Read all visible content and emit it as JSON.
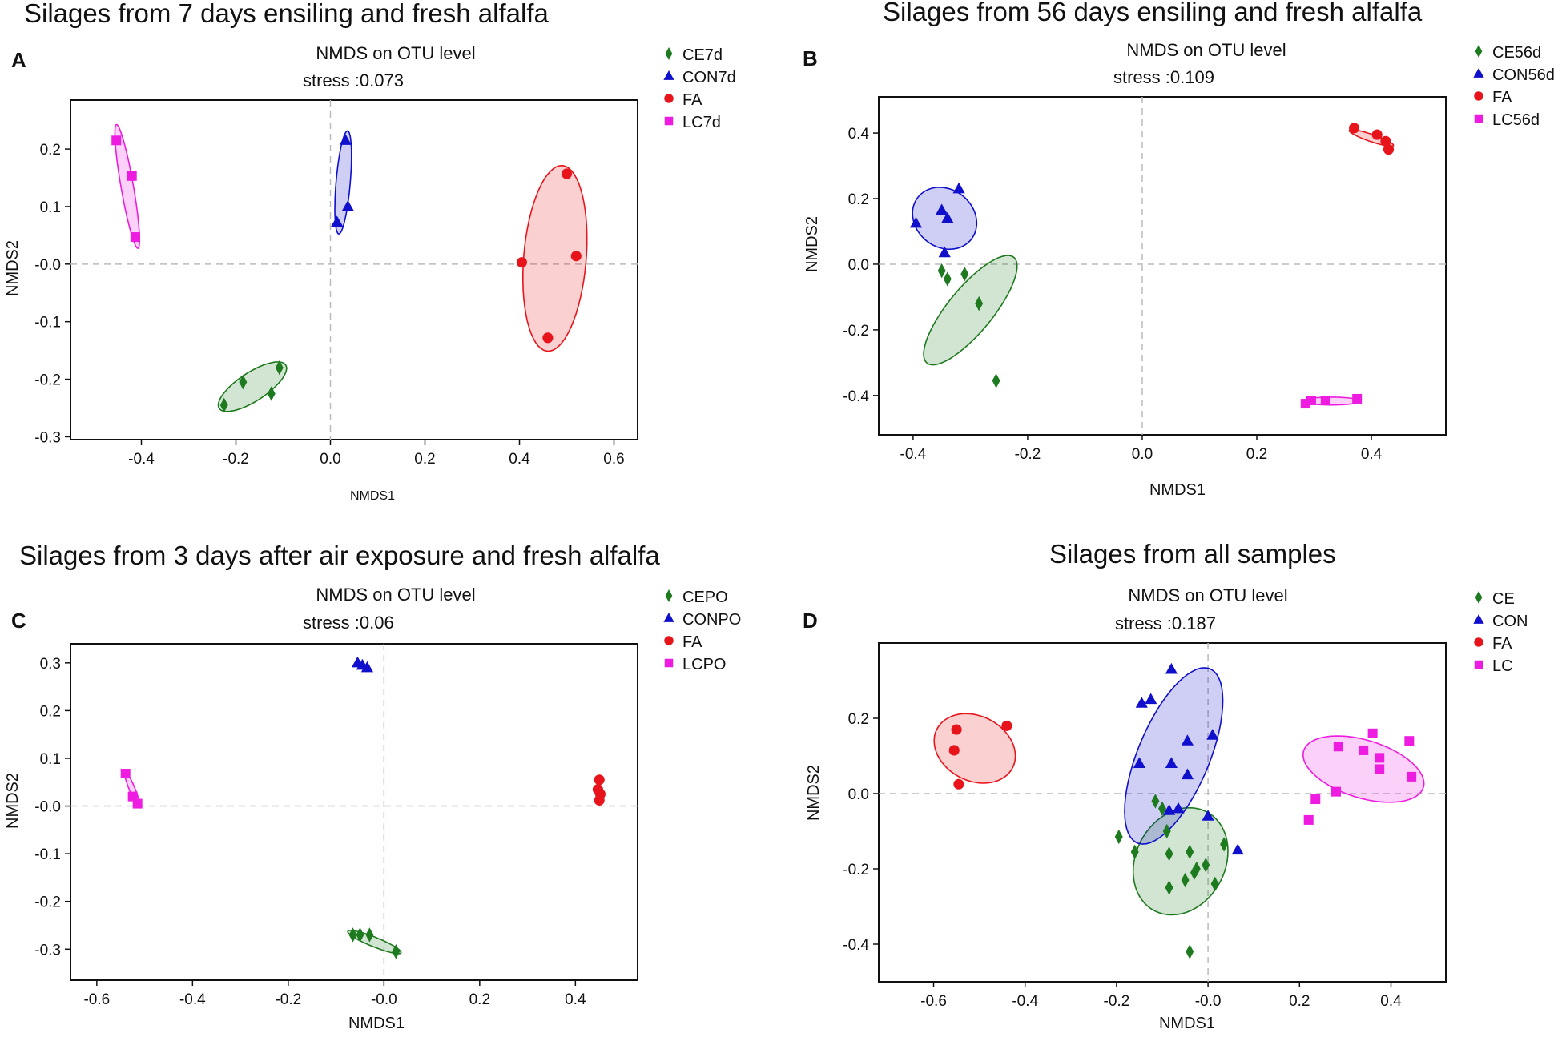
{
  "figure": {
    "panels": [
      {
        "letter": "A",
        "heading": "Silages from 7 days ensiling and fresh alfalfa",
        "title": "NMDS on OTU level",
        "stress": "stress :0.073"
      },
      {
        "letter": "B",
        "heading": "Silages from 56 days ensiling and fresh alfalfa",
        "title": "NMDS on OTU level",
        "stress": "stress :0.109"
      },
      {
        "letter": "C",
        "heading": "Silages from 3 days after air exposure and fresh alfalfa",
        "title": "NMDS on OTU level",
        "stress": "stress :0.06"
      },
      {
        "letter": "D",
        "heading": "Silages from all samples",
        "title": "NMDS on OTU level",
        "stress": "stress :0.187"
      }
    ]
  },
  "colors": {
    "CE": "#1e7a1e",
    "CON": "#1010cc",
    "FA": "#e8141b",
    "LC": "#ee1be0",
    "grid": "#bbbbbb",
    "axis": "#111111"
  },
  "chart_data": [
    {
      "type": "scatter",
      "title": "NMDS on OTU level",
      "xlabel": "NMDS1",
      "ylabel": "NMDS2",
      "xlim": [
        -0.55,
        0.65
      ],
      "ylim": [
        -0.305,
        0.285
      ],
      "xticks": [
        -0.4,
        -0.2,
        0.0,
        0.2,
        0.4,
        0.6
      ],
      "xtick_labels": [
        "-0.4",
        "-0.2",
        "0.0",
        "0.2",
        "0.4",
        "0.6"
      ],
      "yticks": [
        -0.3,
        -0.2,
        -0.1,
        0.0,
        0.1,
        0.2
      ],
      "ytick_labels": [
        "-0.3",
        "-0.2",
        "-0.1",
        "-0.0",
        "0.1",
        "0.2"
      ],
      "legend_position": "right",
      "series": [
        {
          "name": "CE7d",
          "group": "CE",
          "marker": "diamond",
          "points": [
            [
              -0.225,
              -0.245
            ],
            [
              -0.185,
              -0.205
            ],
            [
              -0.125,
              -0.225
            ],
            [
              -0.108,
              -0.18
            ]
          ],
          "ellipse": {
            "cx": -0.165,
            "cy": -0.213,
            "rx": 0.08,
            "ry": 0.026,
            "angle": 27
          }
        },
        {
          "name": "CON7d",
          "group": "CON",
          "marker": "triangle",
          "points": [
            [
              0.032,
              0.215
            ],
            [
              0.037,
              0.1
            ],
            [
              0.014,
              0.073
            ]
          ],
          "ellipse": {
            "cx": 0.027,
            "cy": 0.142,
            "rx": 0.09,
            "ry": 0.015,
            "angle": 84
          }
        },
        {
          "name": "FA",
          "group": "FA",
          "marker": "circle",
          "points": [
            [
              0.5,
              0.157
            ],
            [
              0.405,
              0.003
            ],
            [
              0.52,
              0.014
            ],
            [
              0.46,
              -0.128
            ]
          ],
          "ellipse": {
            "cx": 0.475,
            "cy": 0.01,
            "rx": 0.162,
            "ry": 0.066,
            "angle": 84
          }
        },
        {
          "name": "LC7d",
          "group": "LC",
          "marker": "square",
          "points": [
            [
              -0.453,
              0.215
            ],
            [
              -0.42,
              0.153
            ],
            [
              -0.413,
              0.047
            ]
          ],
          "ellipse": {
            "cx": -0.43,
            "cy": 0.135,
            "rx": 0.11,
            "ry": 0.013,
            "angle": -78
          }
        }
      ]
    },
    {
      "type": "scatter",
      "title": "NMDS on OTU level",
      "xlabel": "NMDS1",
      "ylabel": "NMDS2",
      "xlim": [
        -0.46,
        0.53
      ],
      "ylim": [
        -0.52,
        0.51
      ],
      "xticks": [
        -0.4,
        -0.2,
        0.0,
        0.2,
        0.4
      ],
      "xtick_labels": [
        "-0.4",
        "-0.2",
        "0.0",
        "0.2",
        "0.4"
      ],
      "yticks": [
        -0.4,
        -0.2,
        0.0,
        0.2,
        0.4
      ],
      "ytick_labels": [
        "-0.4",
        "-0.2",
        "0.0",
        "0.2",
        "0.4"
      ],
      "legend_position": "right",
      "series": [
        {
          "name": "CE56d",
          "group": "CE",
          "marker": "diamond",
          "points": [
            [
              -0.34,
              -0.045
            ],
            [
              -0.31,
              -0.03
            ],
            [
              -0.285,
              -0.12
            ],
            [
              -0.255,
              -0.355
            ],
            [
              -0.35,
              -0.02
            ]
          ],
          "ellipse": {
            "cx": -0.3,
            "cy": -0.14,
            "rx": 0.18,
            "ry": 0.045,
            "angle": 67
          }
        },
        {
          "name": "CON56d",
          "group": "CON",
          "marker": "triangle",
          "points": [
            [
              -0.395,
              0.125
            ],
            [
              -0.35,
              0.165
            ],
            [
              -0.32,
              0.23
            ],
            [
              -0.34,
              0.14
            ],
            [
              -0.345,
              0.035
            ]
          ],
          "ellipse": {
            "cx": -0.345,
            "cy": 0.14,
            "rx": 0.055,
            "ry": 0.095,
            "angle": 8
          }
        },
        {
          "name": "FA",
          "group": "FA",
          "marker": "circle",
          "points": [
            [
              0.37,
              0.415
            ],
            [
              0.41,
              0.395
            ],
            [
              0.425,
              0.375
            ],
            [
              0.43,
              0.35
            ]
          ],
          "ellipse": {
            "cx": 0.4,
            "cy": 0.385,
            "rx": 0.045,
            "ry": 0.01,
            "angle": -32
          }
        },
        {
          "name": "LC56d",
          "group": "LC",
          "marker": "square",
          "points": [
            [
              0.285,
              -0.425
            ],
            [
              0.295,
              -0.415
            ],
            [
              0.32,
              -0.415
            ],
            [
              0.375,
              -0.41
            ]
          ],
          "ellipse": {
            "cx": 0.33,
            "cy": -0.417,
            "rx": 0.05,
            "ry": 0.012,
            "angle": 0
          }
        }
      ]
    },
    {
      "type": "scatter",
      "title": "NMDS on OTU level",
      "xlabel": "NMDS1",
      "ylabel": "NMDS2",
      "xlim": [
        -0.655,
        0.53
      ],
      "ylim": [
        -0.365,
        0.34
      ],
      "xticks": [
        -0.6,
        -0.4,
        -0.2,
        0.0,
        0.2,
        0.4
      ],
      "xtick_labels": [
        "-0.6",
        "-0.4",
        "-0.2",
        "-0.0",
        "0.2",
        "0.4"
      ],
      "yticks": [
        -0.3,
        -0.2,
        -0.1,
        0.0,
        0.1,
        0.2,
        0.3
      ],
      "ytick_labels": [
        "-0.3",
        "-0.2",
        "-0.1",
        "-0.0",
        "0.1",
        "0.2",
        "0.3"
      ],
      "legend_position": "right",
      "series": [
        {
          "name": "CEPO",
          "group": "CE",
          "marker": "diamond",
          "points": [
            [
              -0.065,
              -0.27
            ],
            [
              -0.05,
              -0.27
            ],
            [
              -0.03,
              -0.27
            ],
            [
              0.025,
              -0.305
            ]
          ],
          "ellipse": {
            "cx": -0.02,
            "cy": -0.285,
            "rx": 0.06,
            "ry": 0.01,
            "angle": -22
          }
        },
        {
          "name": "CONPO",
          "group": "CON",
          "marker": "triangle",
          "points": [
            [
              -0.055,
              0.3
            ],
            [
              -0.045,
              0.295
            ],
            [
              -0.035,
              0.29
            ]
          ],
          "ellipse": null
        },
        {
          "name": "FA",
          "group": "FA",
          "marker": "circle",
          "points": [
            [
              0.45,
              0.055
            ],
            [
              0.447,
              0.035
            ],
            [
              0.452,
              0.025
            ],
            [
              0.45,
              0.012
            ]
          ],
          "ellipse": null
        },
        {
          "name": "LCPO",
          "group": "LC",
          "marker": "square",
          "points": [
            [
              -0.54,
              0.068
            ],
            [
              -0.525,
              0.02
            ],
            [
              -0.515,
              0.005
            ]
          ],
          "ellipse": {
            "cx": -0.526,
            "cy": 0.035,
            "rx": 0.04,
            "ry": 0.006,
            "angle": -68
          }
        }
      ]
    },
    {
      "type": "scatter",
      "title": "NMDS on OTU level",
      "xlabel": "NMDS1",
      "ylabel": "NMDS2",
      "xlim": [
        -0.72,
        0.52
      ],
      "ylim": [
        -0.5,
        0.4
      ],
      "xticks": [
        -0.6,
        -0.4,
        -0.2,
        0.0,
        0.2,
        0.4
      ],
      "xtick_labels": [
        "-0.6",
        "-0.4",
        "-0.2",
        "-0.0",
        "0.2",
        "0.4"
      ],
      "yticks": [
        -0.4,
        -0.2,
        0.0,
        0.2
      ],
      "ytick_labels": [
        "-0.4",
        "-0.2",
        "0.0",
        "0.2"
      ],
      "legend_position": "right",
      "series": [
        {
          "name": "CE",
          "group": "CE",
          "marker": "diamond",
          "points": [
            [
              -0.195,
              -0.115
            ],
            [
              -0.16,
              -0.155
            ],
            [
              -0.115,
              -0.02
            ],
            [
              -0.09,
              -0.1
            ],
            [
              -0.085,
              -0.16
            ],
            [
              -0.085,
              -0.25
            ],
            [
              -0.05,
              -0.23
            ],
            [
              -0.04,
              -0.155
            ],
            [
              -0.03,
              -0.21
            ],
            [
              -0.025,
              -0.2
            ],
            [
              -0.005,
              -0.19
            ],
            [
              0.035,
              -0.135
            ],
            [
              0.015,
              -0.24
            ],
            [
              -0.04,
              -0.42
            ],
            [
              -0.1,
              -0.04
            ]
          ],
          "ellipse": {
            "cx": -0.06,
            "cy": -0.18,
            "rx": 0.1,
            "ry": 0.145,
            "angle": -15
          }
        },
        {
          "name": "CON",
          "group": "CON",
          "marker": "triangle",
          "points": [
            [
              -0.08,
              0.33
            ],
            [
              -0.145,
              0.24
            ],
            [
              -0.125,
              0.25
            ],
            [
              -0.045,
              0.14
            ],
            [
              -0.08,
              0.08
            ],
            [
              0.01,
              0.155
            ],
            [
              -0.045,
              0.05
            ],
            [
              -0.065,
              -0.04
            ],
            [
              -0.15,
              0.08
            ],
            [
              -0.085,
              -0.045
            ],
            [
              0.0,
              -0.06
            ],
            [
              0.065,
              -0.15
            ]
          ],
          "ellipse": {
            "cx": -0.075,
            "cy": 0.1,
            "rx": 0.08,
            "ry": 0.245,
            "angle": -18
          }
        },
        {
          "name": "FA",
          "group": "FA",
          "marker": "circle",
          "points": [
            [
              -0.55,
              0.17
            ],
            [
              -0.555,
              0.115
            ],
            [
              -0.545,
              0.025
            ],
            [
              -0.44,
              0.18
            ]
          ],
          "ellipse": {
            "cx": -0.51,
            "cy": 0.12,
            "rx": 0.08,
            "ry": 0.1,
            "angle": 40
          }
        },
        {
          "name": "LC",
          "group": "LC",
          "marker": "square",
          "points": [
            [
              0.22,
              -0.07
            ],
            [
              0.235,
              -0.015
            ],
            [
              0.28,
              0.005
            ],
            [
              0.285,
              0.125
            ],
            [
              0.34,
              0.115
            ],
            [
              0.36,
              0.16
            ],
            [
              0.375,
              0.095
            ],
            [
              0.375,
              0.065
            ],
            [
              0.44,
              0.14
            ],
            [
              0.445,
              0.045
            ]
          ],
          "ellipse": {
            "cx": 0.34,
            "cy": 0.065,
            "rx": 0.14,
            "ry": 0.075,
            "angle": -23
          }
        }
      ]
    }
  ]
}
